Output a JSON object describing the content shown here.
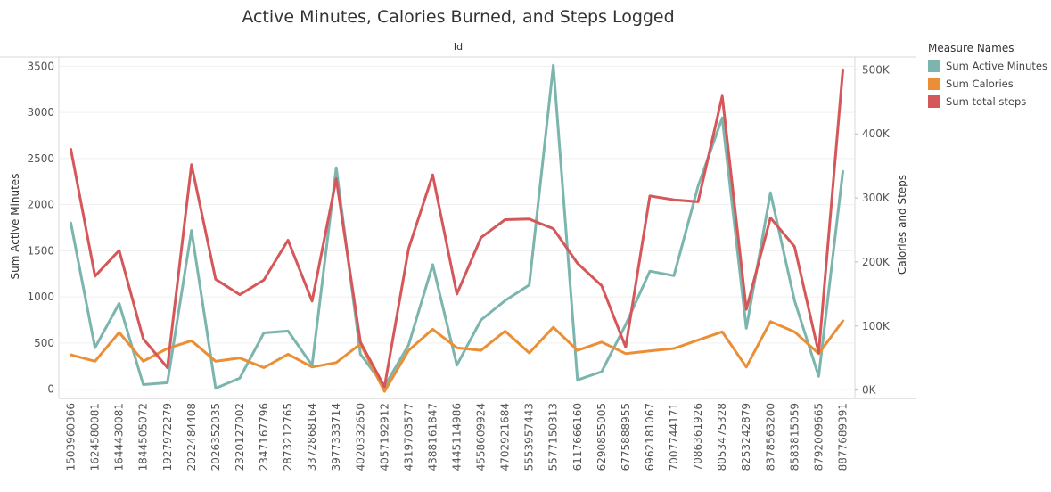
{
  "header": {
    "title": "Active Minutes, Calories Burned, and Steps Logged",
    "column_label": "Id"
  },
  "legend": {
    "title": "Measure Names",
    "items": [
      {
        "label": "Sum Active Minutes",
        "color": "#7bb5ae"
      },
      {
        "label": "Sum Calories",
        "color": "#ea8f35"
      },
      {
        "label": "Sum total steps",
        "color": "#d5575a"
      }
    ]
  },
  "chart_data": {
    "type": "line",
    "title": "Active Minutes, Calories Burned, and Steps Logged",
    "xlabel": "Id",
    "ylabel": "Sum Active Minutes",
    "y2label": "Calories and Steps",
    "ylim": [
      -100,
      3600
    ],
    "y2lim": [
      -13000,
      520000
    ],
    "yticks": [
      0,
      500,
      1000,
      1500,
      2000,
      2500,
      3000,
      3500
    ],
    "y2ticks": [
      0,
      100000,
      200000,
      300000,
      400000,
      500000
    ],
    "y2ticklabels": [
      "0K",
      "100K",
      "200K",
      "300K",
      "400K",
      "500K"
    ],
    "grid": true,
    "legend_position": "right",
    "categories": [
      "1503960366",
      "1624580081",
      "1644430081",
      "1844505072",
      "1927972279",
      "2022484408",
      "2026352035",
      "2320127002",
      "2347167796",
      "2873212765",
      "3372868164",
      "3977333714",
      "4020332650",
      "4057192912",
      "4319703577",
      "4388161847",
      "4445114986",
      "4558609924",
      "4702921684",
      "5553957443",
      "5577150313",
      "6117666160",
      "6290855005",
      "6775888955",
      "6962181067",
      "7007744171",
      "7086361926",
      "8053475328",
      "8253242879",
      "8378563200",
      "8583815059",
      "8792009665",
      "8877689391"
    ],
    "series": [
      {
        "name": "Sum Active Minutes",
        "axis": "left",
        "color": "#7bb5ae",
        "values": [
          1800,
          450,
          930,
          50,
          70,
          1720,
          10,
          120,
          610,
          630,
          260,
          2400,
          380,
          30,
          480,
          1350,
          260,
          750,
          960,
          1130,
          3510,
          100,
          190,
          700,
          1280,
          1230,
          2200,
          2940,
          660,
          2130,
          960,
          140,
          2360
        ]
      },
      {
        "name": "Sum Calories",
        "axis": "right",
        "color": "#ea8f35",
        "values": [
          55000,
          45000,
          90000,
          45000,
          65000,
          77000,
          45000,
          50000,
          35000,
          56000,
          36000,
          43000,
          72000,
          -2000,
          62000,
          95000,
          66000,
          62000,
          92000,
          58000,
          98000,
          62000,
          75000,
          57000,
          61000,
          65000,
          78000,
          91000,
          36000,
          107000,
          91000,
          57000,
          108000
        ]
      },
      {
        "name": "Sum total steps",
        "axis": "right",
        "color": "#d5575a",
        "values": [
          376000,
          178000,
          218000,
          80000,
          35000,
          352000,
          173000,
          149000,
          172000,
          234000,
          139000,
          330000,
          75000,
          5000,
          221000,
          336000,
          150000,
          238000,
          266000,
          267000,
          252000,
          198000,
          163000,
          67000,
          303000,
          297000,
          294000,
          459000,
          126000,
          269000,
          224000,
          58000,
          500000
        ]
      }
    ]
  }
}
